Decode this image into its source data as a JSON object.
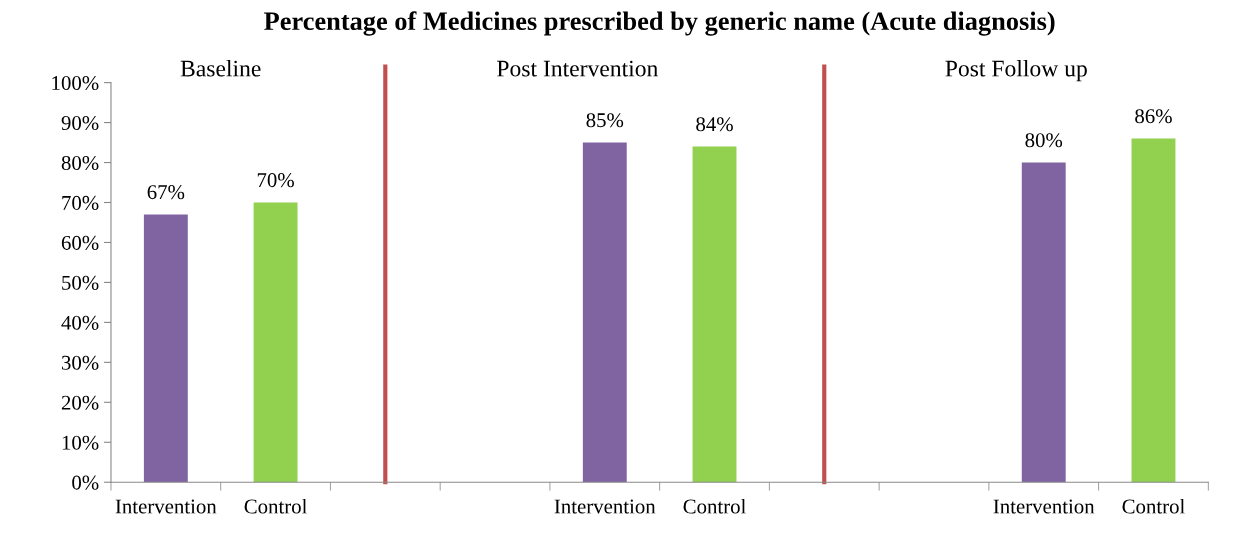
{
  "chart_data": {
    "type": "bar",
    "title": "Percentage of Medicines prescribed by generic name (Acute diagnosis)",
    "categories": [
      "Intervention",
      "Control",
      null,
      null,
      "Intervention",
      "Control",
      null,
      null,
      "Intervention",
      "Control"
    ],
    "values": [
      67,
      70,
      null,
      null,
      85,
      84,
      null,
      null,
      80,
      86
    ],
    "colors": [
      "#8064a2",
      "#92d050",
      null,
      null,
      "#8064a2",
      "#92d050",
      null,
      null,
      "#8064a2",
      "#92d050"
    ],
    "value_labels": [
      "67%",
      "70%",
      null,
      null,
      "85%",
      "84%",
      null,
      null,
      "80%",
      "86%"
    ],
    "ylim": [
      0,
      100
    ],
    "yticks": [
      {
        "value": 0,
        "label": "0%"
      },
      {
        "value": 10,
        "label": "10%"
      },
      {
        "value": 20,
        "label": "20%"
      },
      {
        "value": 30,
        "label": "30%"
      },
      {
        "value": 40,
        "label": "40%"
      },
      {
        "value": 50,
        "label": "50%"
      },
      {
        "value": 60,
        "label": "60%"
      },
      {
        "value": 70,
        "label": "70%"
      },
      {
        "value": 80,
        "label": "80%"
      },
      {
        "value": 90,
        "label": "90%"
      },
      {
        "value": 100,
        "label": "100%"
      }
    ],
    "annotations": [
      "Baseline",
      "Post Intervention",
      "Post Follow up"
    ],
    "legend": false
  }
}
